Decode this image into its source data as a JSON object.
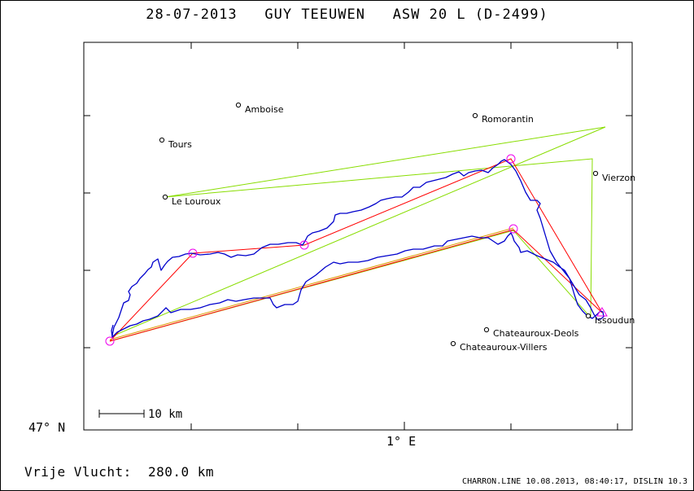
{
  "header": {
    "date": "28-07-2013",
    "pilot": "GUY TEEUWEN",
    "glider": "ASW 20 L (D-2499)"
  },
  "axes": {
    "lat_label": "47° N",
    "lon_label": "1° E"
  },
  "scale_bar": {
    "label": "10 km"
  },
  "towns": [
    {
      "name": "Amboise"
    },
    {
      "name": "Romorantin"
    },
    {
      "name": "Tours"
    },
    {
      "name": "Vierzon"
    },
    {
      "name": "Le Louroux"
    },
    {
      "name": "Issoudun"
    },
    {
      "name": "Chateauroux-Deols"
    },
    {
      "name": "Chateauroux-Villers"
    }
  ],
  "summary": {
    "distance_label": "Vrije Vlucht:",
    "distance_value": "280.0 km"
  },
  "footer": {
    "text": "CHARRON.LINE 10.08.2013, 08:40:17, DISLIN 10.3"
  },
  "colors": {
    "track": "#0000cc",
    "task_optimal": "#ff0000",
    "task_declared": "#88dd00",
    "turnpoint": "#ee00ee",
    "frame": "#000000"
  }
}
